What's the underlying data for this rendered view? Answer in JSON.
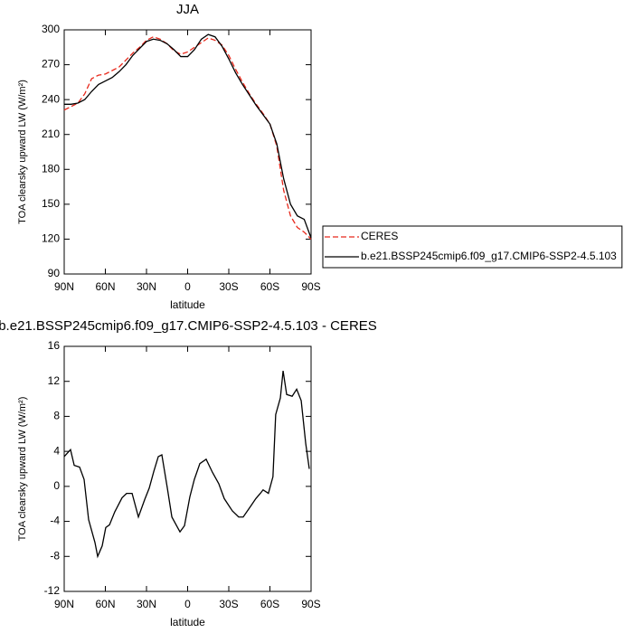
{
  "chart_data": [
    {
      "type": "line",
      "title": "JJA",
      "xlabel": "latitude",
      "ylabel": "TOA clearsky upward LW (W/m²)",
      "xlim": [
        90,
        -90
      ],
      "xticks": [
        {
          "value": 90,
          "label": "90N"
        },
        {
          "value": 60,
          "label": "60N"
        },
        {
          "value": 30,
          "label": "30N"
        },
        0,
        {
          "value": -30,
          "label": "30S"
        },
        {
          "value": -60,
          "label": "60S"
        },
        {
          "value": -90,
          "label": "90S"
        }
      ],
      "ylim": [
        90,
        300
      ],
      "yticks": [
        90,
        120,
        150,
        180,
        210,
        240,
        270,
        300
      ],
      "legend": "right",
      "x": [
        90,
        85,
        80,
        75,
        70,
        65,
        60,
        55,
        50,
        45,
        40,
        35,
        30,
        25,
        20,
        15,
        10,
        5,
        0,
        -5,
        -10,
        -15,
        -20,
        -25,
        -30,
        -35,
        -40,
        -45,
        -50,
        -55,
        -60,
        -65,
        -70,
        -75,
        -80,
        -85,
        -90
      ],
      "series": [
        {
          "name": "CERES",
          "color": "#e8291c",
          "dash": true,
          "values": [
            231,
            234,
            237,
            245,
            258,
            261,
            262,
            265,
            268,
            274,
            280,
            285,
            291,
            294,
            292,
            288,
            282,
            279,
            281,
            285,
            289,
            293,
            291,
            287,
            278,
            266,
            255,
            245,
            236,
            228,
            219,
            200,
            162,
            140,
            130,
            126,
            120
          ]
        },
        {
          "name": "b.e21.BSSP245cmip6.f09_g17.CMIP6-SSP2-4.5.103",
          "color": "#000000",
          "dash": false,
          "values": [
            236,
            236,
            237,
            240,
            247,
            253,
            256,
            259,
            264,
            270,
            278,
            284,
            290,
            292,
            291,
            288,
            283,
            277,
            277,
            283,
            292,
            296,
            294,
            286,
            275,
            263,
            253,
            244,
            235,
            227,
            219,
            202,
            172,
            150,
            140,
            137,
            121
          ]
        }
      ]
    },
    {
      "type": "line",
      "title": "b.e21.BSSP245cmip6.f09_g17.CMIP6-SSP2-4.5.103 - CERES",
      "xlabel": "latitude",
      "ylabel": "TOA clearsky upward LW (W/m²)",
      "xlim": [
        90,
        -90
      ],
      "xticks": [
        {
          "value": 90,
          "label": "90N"
        },
        {
          "value": 60,
          "label": "60N"
        },
        {
          "value": 30,
          "label": "30N"
        },
        0,
        {
          "value": -30,
          "label": "30S"
        },
        {
          "value": -60,
          "label": "60S"
        },
        {
          "value": -90,
          "label": "90S"
        }
      ],
      "ylim": [
        -12,
        16
      ],
      "yticks": [
        -12,
        -8,
        -4,
        0,
        4,
        8,
        12,
        16
      ],
      "x": [
        90,
        85.4,
        82.7,
        78.8,
        75.5,
        72.2,
        67.6,
        65.6,
        62.3,
        59.7,
        57.0,
        53.1,
        47.8,
        44.5,
        40.5,
        35.9,
        31.3,
        28.0,
        24.7,
        21.4,
        18.8,
        14.8,
        11.5,
        5.6,
        2.3,
        -1.6,
        -4.9,
        -8.9,
        -13.5,
        -18.1,
        -22.7,
        -26.7,
        -32.6,
        -37.2,
        -40.5,
        -45.8,
        -49.7,
        -53.0,
        -55.0,
        -58.9,
        -62.2,
        -64.2,
        -67.6,
        -69.6,
        -72.2,
        -76.2,
        -79.5,
        -82.8,
        -86.1,
        -88.7
      ],
      "series": [
        {
          "color": "#000000",
          "dash": false,
          "values": [
            3.4,
            4.2,
            2.4,
            2.2,
            0.8,
            -3.8,
            -6.4,
            -8.0,
            -6.8,
            -4.7,
            -4.4,
            -2.9,
            -1.3,
            -0.8,
            -0.8,
            -3.5,
            -1.5,
            -0.2,
            1.7,
            3.4,
            3.6,
            -0.2,
            -3.5,
            -5.2,
            -4.5,
            -1.2,
            0.8,
            2.6,
            3.1,
            1.6,
            0.3,
            -1.4,
            -2.8,
            -3.5,
            -3.5,
            -2.3,
            -1.4,
            -0.8,
            -0.4,
            -0.8,
            1.1,
            8.2,
            10.1,
            13.2,
            10.5,
            10.3,
            11.1,
            9.8,
            4.9,
            2.0
          ]
        }
      ]
    }
  ]
}
